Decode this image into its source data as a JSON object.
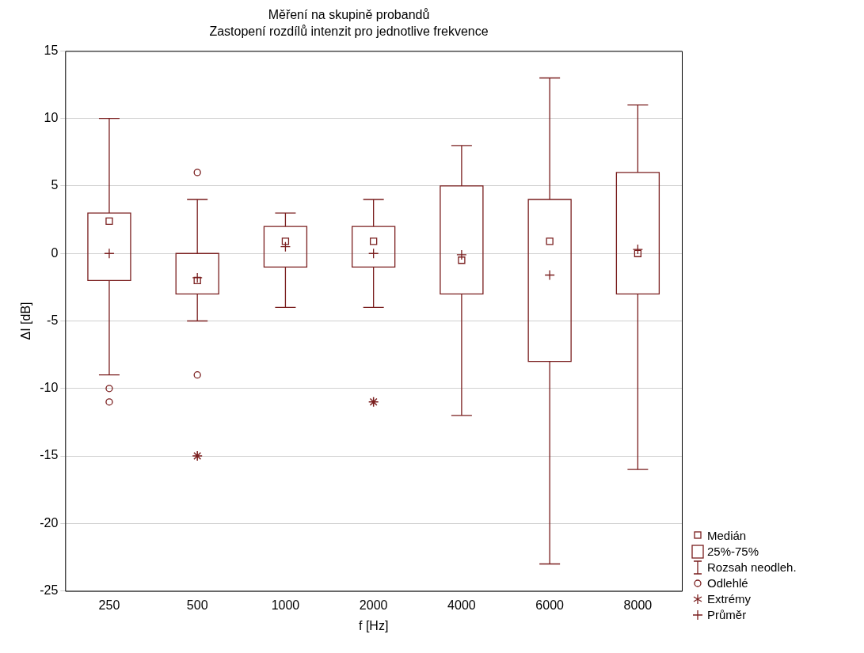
{
  "chart_data": {
    "type": "box",
    "title": "Měření na skupině probandů",
    "subtitle": "Zastopení rozdílů intenzit pro jednotlive frekvence",
    "xlabel": "f [Hz]",
    "ylabel": "ΔI [dB]",
    "categories": [
      "250",
      "500",
      "1000",
      "2000",
      "4000",
      "6000",
      "8000"
    ],
    "ylim": [
      -25,
      15
    ],
    "yticks": [
      -25,
      -20,
      -15,
      -10,
      -5,
      0,
      5,
      10,
      15
    ],
    "grid": "y",
    "legend": "bottom right",
    "annotations": [
      "Medián",
      "25%-75%",
      "Rozsah neodleh.",
      "Odlehlé",
      "Průměr"
    ],
    "series": [
      {
        "type": "box",
        "color": "#7a1e1e",
        "boxes": [
          {
            "low": -9,
            "q1": -2,
            "median": 2.4,
            "q3": 3,
            "high": 10,
            "mean": 0,
            "outliers": [
              -10,
              -11
            ]
          },
          {
            "low": -5,
            "q1": -3,
            "median": -2,
            "q3": 0,
            "high": 4,
            "mean": -1.8,
            "outliers": [
              6,
              -9
            ]
          },
          {
            "low": -4,
            "q1": -1,
            "median": 0.9,
            "q3": 2,
            "high": 3,
            "mean": 0.5
          },
          {
            "low": -4,
            "q1": -1,
            "median": 0.9,
            "q3": 2,
            "high": 4,
            "mean": 0
          },
          {
            "low": -12,
            "q1": -3,
            "median": -0.5,
            "q3": 5,
            "high": 8,
            "mean": -0.1
          },
          {
            "low": -23,
            "q1": -8,
            "median": 0.9,
            "q3": 4,
            "high": 13,
            "mean": -1.6
          },
          {
            "low": -16,
            "q1": -3,
            "median": 0,
            "q3": 6,
            "high": 11,
            "mean": 0.3
          }
        ]
      },
      {
        "type": "scatter",
        "name": "Extrémy",
        "color": "#7a1e1e",
        "marker": "cross",
        "values": [
          null,
          -15,
          null,
          -11,
          null,
          null,
          null
        ]
      }
    ]
  }
}
